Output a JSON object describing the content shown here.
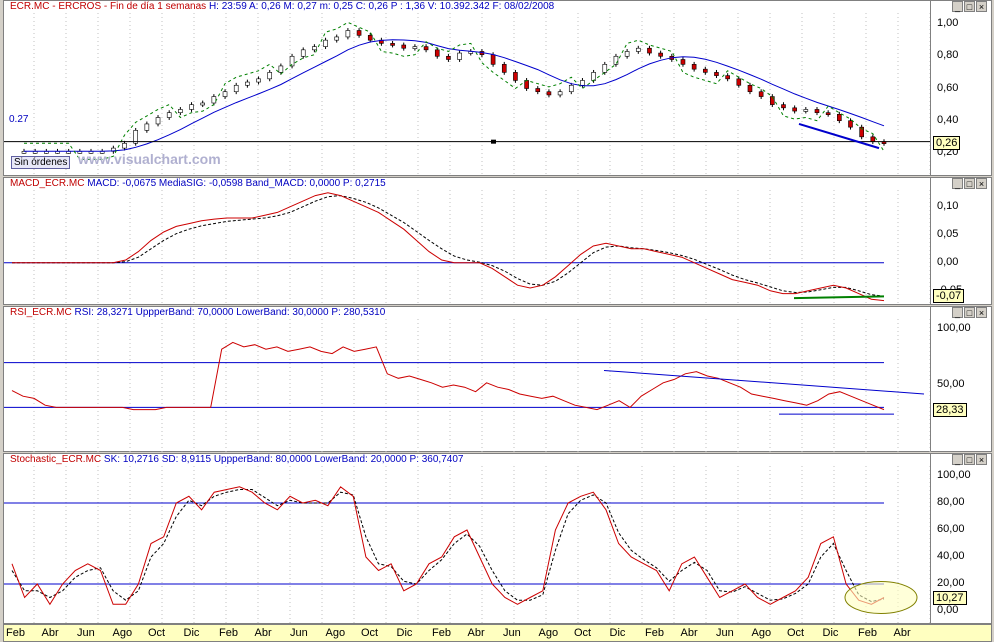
{
  "panels": {
    "price": {
      "title": "ECR.MC - ERCROS - Fin de día 1 semanas",
      "info": "H: 23:59  A: 0,26  M: 0,27  m: 0,25  C: 0,26  P : 1,36  V: 10.392.342  F: 08/02/2008",
      "ticks": [
        "1,00",
        "0,80",
        "0,60",
        "0,40",
        "0,20"
      ],
      "current": "0,26",
      "level_label": "0.27",
      "watermark": "www.visualchart.com",
      "orders_label": "Sin órdenes"
    },
    "macd": {
      "title": "MACD_ECR.MC",
      "info": "MACD: -0,0675  MediaSIG: -0,0598  Band_MACD: 0,0000  P: 0,2715",
      "ticks": [
        "0,10",
        "0,05",
        "0,00",
        "-0,05"
      ],
      "current": "-0,07"
    },
    "rsi": {
      "title": "RSI_ECR.MC",
      "info": "RSI: 28,3271  UppperBand: 70,0000  LowerBand: 30,0000  P: 280,5310",
      "ticks": [
        "100,00",
        "50,00"
      ],
      "current": "28,33"
    },
    "stoch": {
      "title": "Stochastic_ECR.MC",
      "info": "SK: 10,2716  SD: 8,9115  UppperBand: 80,0000  LowerBand: 20,0000  P: 360,7407",
      "ticks": [
        "100,00",
        "80,00",
        "60,00",
        "40,00",
        "20,00",
        "0,00"
      ],
      "current": "10,27"
    }
  },
  "x_labels": [
    "Feb",
    "Abr",
    "Jun",
    "Ago",
    "Oct",
    "Dic",
    "Feb",
    "Abr",
    "Jun",
    "Ago",
    "Oct",
    "Dic",
    "Feb",
    "Abr",
    "Jun",
    "Ago",
    "Oct",
    "Dic",
    "Feb",
    "Abr",
    "Jun",
    "Ago",
    "Oct",
    "Dic",
    "Feb",
    "Abr"
  ],
  "colors": {
    "price_up": "#ffffff",
    "price_down": "#cc0000",
    "ma": "#0000cc",
    "signal": "#008000",
    "indicator": "#cc0000",
    "band": "#0000cc"
  },
  "chart_data": [
    {
      "type": "candlestick",
      "title": "ECR.MC - ERCROS - Fin de día 1 semanas",
      "ylim": [
        0.15,
        1.05
      ],
      "close": [
        0.21,
        0.21,
        0.21,
        0.21,
        0.21,
        0.21,
        0.21,
        0.21,
        0.23,
        0.26,
        0.34,
        0.38,
        0.42,
        0.45,
        0.47,
        0.5,
        0.51,
        0.55,
        0.58,
        0.62,
        0.64,
        0.66,
        0.7,
        0.74,
        0.8,
        0.84,
        0.86,
        0.9,
        0.92,
        0.96,
        0.93,
        0.9,
        0.88,
        0.87,
        0.85,
        0.86,
        0.84,
        0.8,
        0.78,
        0.82,
        0.83,
        0.81,
        0.75,
        0.7,
        0.65,
        0.6,
        0.58,
        0.56,
        0.58,
        0.62,
        0.65,
        0.7,
        0.75,
        0.8,
        0.83,
        0.85,
        0.82,
        0.8,
        0.78,
        0.75,
        0.72,
        0.7,
        0.68,
        0.66,
        0.62,
        0.58,
        0.55,
        0.5,
        0.48,
        0.46,
        0.47,
        0.45,
        0.44,
        0.4,
        0.36,
        0.3,
        0.27,
        0.26
      ]
    },
    {
      "type": "line",
      "title": "MACD_ECR.MC",
      "ylim": [
        -0.07,
        0.13
      ],
      "series": [
        {
          "name": "MACD",
          "values": [
            0.0,
            0.0,
            0.0,
            0.0,
            0.0,
            0.0,
            0.0,
            0.0,
            0.0,
            0.005,
            0.02,
            0.04,
            0.055,
            0.065,
            0.07,
            0.075,
            0.078,
            0.08,
            0.08,
            0.08,
            0.085,
            0.09,
            0.1,
            0.11,
            0.12,
            0.125,
            0.12,
            0.11,
            0.1,
            0.09,
            0.075,
            0.06,
            0.04,
            0.02,
            0.005,
            0.0,
            0.0,
            0.0,
            -0.01,
            -0.025,
            -0.04,
            -0.045,
            -0.04,
            -0.025,
            -0.005,
            0.015,
            0.03,
            0.035,
            0.03,
            0.025,
            0.025,
            0.02,
            0.015,
            0.01,
            0.0,
            -0.01,
            -0.02,
            -0.03,
            -0.035,
            -0.04,
            -0.05,
            -0.055,
            -0.055,
            -0.05,
            -0.045,
            -0.04,
            -0.045,
            -0.055,
            -0.065,
            -0.0675
          ]
        },
        {
          "name": "MediaSIG",
          "values": [
            0.0,
            0.0,
            0.0,
            0.0,
            0.0,
            0.0,
            0.0,
            0.0,
            0.0,
            0.002,
            0.01,
            0.025,
            0.04,
            0.052,
            0.06,
            0.066,
            0.07,
            0.074,
            0.076,
            0.078,
            0.08,
            0.084,
            0.09,
            0.1,
            0.11,
            0.118,
            0.12,
            0.115,
            0.108,
            0.098,
            0.085,
            0.072,
            0.056,
            0.04,
            0.025,
            0.012,
            0.005,
            0.001,
            -0.005,
            -0.015,
            -0.028,
            -0.038,
            -0.04,
            -0.033,
            -0.018,
            0.0,
            0.018,
            0.028,
            0.03,
            0.027,
            0.025,
            0.022,
            0.018,
            0.013,
            0.006,
            -0.003,
            -0.012,
            -0.022,
            -0.03,
            -0.036,
            -0.043,
            -0.05,
            -0.053,
            -0.052,
            -0.048,
            -0.044,
            -0.044,
            -0.05,
            -0.057,
            -0.0598
          ]
        }
      ]
    },
    {
      "type": "line",
      "title": "RSI_ECR.MC",
      "ylim": [
        0,
        100
      ],
      "series": [
        {
          "name": "RSI",
          "values": [
            45,
            40,
            38,
            32,
            30,
            30,
            30,
            30,
            30,
            30,
            30,
            28,
            28,
            28,
            30,
            30,
            30,
            30,
            30,
            82,
            88,
            84,
            86,
            82,
            84,
            80,
            82,
            84,
            80,
            78,
            84,
            80,
            82,
            84,
            60,
            56,
            58,
            55,
            52,
            48,
            50,
            48,
            44,
            52,
            48,
            46,
            42,
            40,
            38,
            40,
            36,
            32,
            30,
            28,
            32,
            36,
            30,
            40,
            46,
            52,
            55,
            60,
            62,
            58,
            56,
            52,
            48,
            42,
            40,
            38,
            36,
            34,
            32,
            36,
            42,
            44,
            40,
            36,
            32,
            28
          ]
        },
        {
          "name": "UppperBand",
          "values": [
            70
          ]
        },
        {
          "name": "LowerBand",
          "values": [
            30
          ]
        }
      ]
    },
    {
      "type": "line",
      "title": "Stochastic_ECR.MC",
      "ylim": [
        0,
        100
      ],
      "series": [
        {
          "name": "SK",
          "values": [
            35,
            10,
            20,
            5,
            20,
            30,
            35,
            30,
            5,
            5,
            20,
            50,
            55,
            80,
            85,
            75,
            88,
            90,
            92,
            88,
            80,
            75,
            85,
            80,
            82,
            78,
            92,
            85,
            40,
            30,
            35,
            15,
            20,
            35,
            40,
            55,
            60,
            40,
            20,
            10,
            5,
            10,
            15,
            60,
            80,
            85,
            88,
            75,
            50,
            40,
            35,
            30,
            15,
            35,
            40,
            25,
            10,
            15,
            20,
            10,
            5,
            10,
            15,
            25,
            50,
            55,
            20,
            8,
            5,
            10
          ]
        },
        {
          "name": "SD",
          "values": [
            30,
            15,
            15,
            10,
            15,
            25,
            30,
            32,
            15,
            8,
            15,
            40,
            50,
            70,
            82,
            78,
            85,
            88,
            90,
            90,
            84,
            78,
            82,
            80,
            80,
            80,
            88,
            86,
            55,
            35,
            33,
            22,
            20,
            30,
            38,
            50,
            57,
            48,
            30,
            15,
            8,
            8,
            12,
            45,
            72,
            82,
            86,
            80,
            58,
            45,
            38,
            32,
            22,
            30,
            36,
            30,
            15,
            14,
            18,
            13,
            8,
            9,
            13,
            20,
            40,
            50,
            30,
            12,
            7,
            9
          ]
        },
        {
          "name": "UppperBand",
          "values": [
            80
          ]
        },
        {
          "name": "LowerBand",
          "values": [
            20
          ]
        }
      ]
    }
  ]
}
